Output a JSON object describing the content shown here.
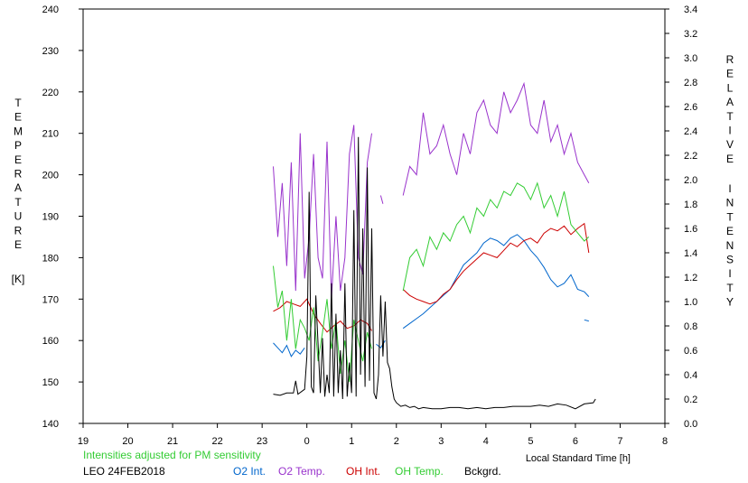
{
  "chart_data": {
    "type": "line",
    "title": "",
    "xlabel": "Local Standard Time [h]",
    "ylabel_left": "TEMPERATURE [K]",
    "ylabel_left_letters": [
      "T",
      "E",
      "M",
      "P",
      "E",
      "R",
      "A",
      "T",
      "U",
      "R",
      "E"
    ],
    "ylabel_left_unit": "[K]",
    "ylabel_right_word1": [
      "R",
      "E",
      "L",
      "A",
      "T",
      "I",
      "V",
      "E"
    ],
    "ylabel_right_word2": [
      "I",
      "N",
      "T",
      "E",
      "N",
      "S",
      "I",
      "T",
      "Y"
    ],
    "xlim": [
      19,
      32
    ],
    "ylim_left": [
      140,
      240
    ],
    "ylim_right": [
      0.0,
      3.4
    ],
    "x_ticks": [
      19,
      20,
      21,
      22,
      23,
      24,
      25,
      26,
      27,
      28,
      29,
      30,
      31,
      32
    ],
    "x_tick_labels": [
      "19",
      "20",
      "21",
      "22",
      "23",
      "0",
      "1",
      "2",
      "3",
      "4",
      "5",
      "6",
      "7",
      "8"
    ],
    "y_left_ticks": [
      140,
      150,
      160,
      170,
      180,
      190,
      200,
      210,
      220,
      230,
      240
    ],
    "y_left_tick_labels": [
      "140",
      "150",
      "160",
      "170",
      "180",
      "190",
      "200",
      "210",
      "220",
      "230",
      "240"
    ],
    "y_right_ticks": [
      0.0,
      0.2,
      0.4,
      0.6,
      0.8,
      1.0,
      1.2,
      1.4,
      1.6,
      1.8,
      2.0,
      2.2,
      2.4,
      2.6,
      2.8,
      3.0,
      3.2,
      3.4
    ],
    "y_right_tick_labels": [
      "0.0",
      "0.2",
      "0.4",
      "0.6",
      "0.8",
      "1.0",
      "1.2",
      "1.4",
      "1.6",
      "1.8",
      "2.0",
      "2.2",
      "2.4",
      "2.6",
      "2.8",
      "3.0",
      "3.2",
      "3.4"
    ],
    "grid": false,
    "legend_placement": "bottom",
    "note": "Intensities adjusted for PM sensitivity",
    "station": "LEO 24FEB2018",
    "series": [
      {
        "name": "O2 Int.",
        "axis": "right",
        "color": "#0066cc",
        "segments": [
          {
            "x": [
              23.25,
              23.35,
              23.45,
              23.55,
              23.65,
              23.75,
              23.85,
              23.95
            ],
            "y": [
              0.66,
              0.62,
              0.58,
              0.64,
              0.55,
              0.6,
              0.57,
              0.62
            ]
          },
          {
            "x": [
              25.55,
              25.65,
              25.75
            ],
            "y": [
              0.65,
              0.62,
              0.68
            ]
          },
          {
            "x": [
              26.15,
              26.3,
              26.45,
              26.6,
              26.75,
              26.9,
              27.05,
              27.2,
              27.35,
              27.5,
              27.65,
              27.8,
              27.95,
              28.1,
              28.25,
              28.4,
              28.55,
              28.7,
              28.85,
              29.0,
              29.15,
              29.3,
              29.45,
              29.6,
              29.75,
              29.9,
              30.05,
              30.2,
              30.3
            ],
            "y": [
              0.78,
              0.82,
              0.86,
              0.9,
              0.95,
              1.0,
              1.05,
              1.1,
              1.2,
              1.3,
              1.35,
              1.4,
              1.48,
              1.52,
              1.5,
              1.46,
              1.52,
              1.55,
              1.5,
              1.42,
              1.36,
              1.28,
              1.18,
              1.12,
              1.15,
              1.22,
              1.1,
              1.08,
              1.04
            ]
          },
          {
            "x": [
              30.2,
              30.3
            ],
            "y": [
              0.85,
              0.84
            ]
          }
        ]
      },
      {
        "name": "O2 Temp.",
        "axis": "left",
        "color": "#9933cc",
        "segments": [
          {
            "x": [
              23.25,
              23.35,
              23.45,
              23.55,
              23.65,
              23.75,
              23.85,
              23.95,
              24.05,
              24.15,
              24.25,
              24.35,
              24.45,
              24.55,
              24.65,
              24.75,
              24.85,
              24.95,
              25.05,
              25.15,
              25.25,
              25.35,
              25.45
            ],
            "y": [
              202,
              185,
              198,
              178,
              203,
              172,
              210,
              175,
              185,
              205,
              180,
              175,
              208,
              170,
              190,
              172,
              180,
              205,
              212,
              180,
              176,
              203,
              210
            ]
          },
          {
            "x": [
              25.65,
              25.7
            ],
            "y": [
              195,
              193
            ]
          },
          {
            "x": [
              26.15,
              26.3,
              26.45,
              26.6,
              26.75,
              26.9,
              27.05,
              27.2,
              27.35,
              27.5,
              27.65,
              27.8,
              27.95,
              28.1,
              28.25,
              28.4,
              28.55,
              28.7,
              28.85,
              29.0,
              29.15,
              29.3,
              29.45,
              29.6,
              29.75,
              29.9,
              30.05,
              30.2,
              30.3
            ],
            "y": [
              195,
              202,
              200,
              215,
              205,
              207,
              212,
              205,
              200,
              210,
              205,
              215,
              218,
              212,
              210,
              220,
              215,
              218,
              222,
              212,
              210,
              218,
              208,
              212,
              205,
              210,
              203,
              200,
              198
            ]
          }
        ]
      },
      {
        "name": "OH Int.",
        "axis": "right",
        "color": "#cc0000",
        "segments": [
          {
            "x": [
              23.25,
              23.4,
              23.55,
              23.7,
              23.85,
              24.0,
              24.15,
              24.3,
              24.45,
              24.6,
              24.75,
              24.9,
              25.05,
              25.2,
              25.35,
              25.45
            ],
            "y": [
              0.92,
              0.95,
              1.0,
              0.98,
              0.96,
              1.02,
              0.9,
              0.82,
              0.75,
              0.8,
              0.84,
              0.78,
              0.8,
              0.85,
              0.82,
              0.76
            ]
          },
          {
            "x": [
              26.15,
              26.3,
              26.45,
              26.6,
              26.75,
              26.9,
              27.05,
              27.2,
              27.35,
              27.5,
              27.65,
              27.8,
              27.95,
              28.1,
              28.25,
              28.4,
              28.55,
              28.7,
              28.85,
              29.0,
              29.15,
              29.3,
              29.45,
              29.6,
              29.75,
              29.9,
              30.05,
              30.2,
              30.3
            ],
            "y": [
              1.1,
              1.05,
              1.02,
              1.0,
              0.98,
              1.0,
              1.06,
              1.1,
              1.18,
              1.25,
              1.3,
              1.35,
              1.4,
              1.38,
              1.36,
              1.42,
              1.48,
              1.45,
              1.5,
              1.52,
              1.48,
              1.56,
              1.6,
              1.58,
              1.62,
              1.55,
              1.6,
              1.64,
              1.4
            ]
          }
        ]
      },
      {
        "name": "OH Temp.",
        "axis": "left",
        "color": "#33cc33",
        "segments": [
          {
            "x": [
              23.25,
              23.35,
              23.45,
              23.55,
              23.65,
              23.75,
              23.85,
              23.95,
              24.05,
              24.15,
              24.25,
              24.35,
              24.45,
              24.55,
              24.65,
              24.75,
              24.85,
              24.95,
              25.05,
              25.15,
              25.25,
              25.35,
              25.45
            ],
            "y": [
              178,
              168,
              172,
              160,
              170,
              158,
              165,
              163,
              160,
              168,
              155,
              162,
              170,
              158,
              165,
              152,
              160,
              150,
              165,
              160,
              155,
              162,
              158
            ]
          },
          {
            "x": [
              26.15,
              26.3,
              26.45,
              26.6,
              26.75,
              26.9,
              27.05,
              27.2,
              27.35,
              27.5,
              27.65,
              27.8,
              27.95,
              28.1,
              28.25,
              28.4,
              28.55,
              28.7,
              28.85,
              29.0,
              29.15,
              29.3,
              29.45,
              29.6,
              29.75,
              29.9,
              30.05,
              30.2,
              30.3
            ],
            "y": [
              172,
              180,
              182,
              178,
              185,
              182,
              186,
              184,
              188,
              190,
              186,
              192,
              190,
              194,
              192,
              196,
              195,
              198,
              197,
              194,
              198,
              192,
              195,
              190,
              196,
              188,
              186,
              184,
              185
            ]
          }
        ]
      },
      {
        "name": "Bckgrd.",
        "axis": "right",
        "color": "#000000",
        "segments": [
          {
            "x": [
              23.25,
              23.4,
              23.55,
              23.7,
              23.75,
              23.8,
              23.95,
              24.0,
              24.05,
              24.1,
              24.15,
              24.2,
              24.3,
              24.35,
              24.4,
              24.45,
              24.5,
              24.55,
              24.6,
              24.65,
              24.7,
              24.75,
              24.8,
              24.85,
              24.9,
              24.95,
              25.0,
              25.05,
              25.1,
              25.15,
              25.2,
              25.25,
              25.3,
              25.35,
              25.4,
              25.45,
              25.5,
              25.55,
              25.6,
              25.65,
              25.7,
              25.75,
              25.8,
              25.85,
              25.9,
              25.95,
              26.0,
              26.1,
              26.2,
              26.3,
              26.4,
              26.5,
              26.6,
              26.8,
              27.0,
              27.2,
              27.4,
              27.6,
              27.8,
              28.0,
              28.2,
              28.4,
              28.6,
              28.8,
              29.0,
              29.2,
              29.4,
              29.6,
              29.8,
              30.0,
              30.2,
              30.4,
              30.45
            ],
            "y": [
              0.24,
              0.23,
              0.25,
              0.25,
              0.35,
              0.24,
              0.28,
              0.55,
              1.9,
              0.3,
              0.25,
              1.05,
              0.25,
              0.7,
              0.22,
              0.4,
              0.25,
              1.15,
              0.22,
              0.9,
              0.25,
              0.6,
              0.2,
              1.15,
              0.22,
              0.5,
              0.25,
              1.75,
              0.22,
              2.35,
              0.4,
              1.6,
              0.3,
              2.1,
              0.35,
              1.6,
              0.25,
              0.2,
              0.4,
              1.05,
              0.55,
              1.0,
              0.5,
              0.45,
              0.3,
              0.2,
              0.17,
              0.14,
              0.15,
              0.13,
              0.14,
              0.12,
              0.13,
              0.12,
              0.12,
              0.13,
              0.13,
              0.12,
              0.13,
              0.12,
              0.13,
              0.13,
              0.14,
              0.14,
              0.14,
              0.15,
              0.14,
              0.16,
              0.15,
              0.12,
              0.16,
              0.17,
              0.2
            ]
          }
        ]
      }
    ]
  }
}
